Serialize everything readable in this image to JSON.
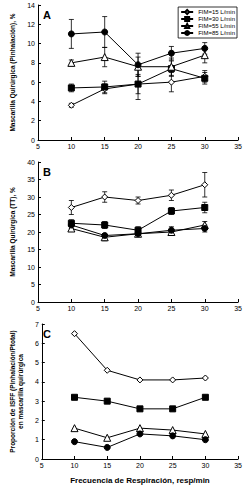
{
  "chart_data": [
    {
      "type": "line",
      "annotation": "A",
      "ylabel": "Mascarilla Quirúrgica (Pinhalación), %",
      "x": [
        10,
        15,
        20,
        25,
        30
      ],
      "xlim": [
        5,
        35
      ],
      "xticks": [
        5,
        10,
        15,
        20,
        25,
        30,
        35
      ],
      "ylim": [
        0,
        14
      ],
      "yticks": [
        0,
        2,
        4,
        6,
        8,
        10,
        12,
        14
      ],
      "grid": false,
      "legend": "upper right",
      "series": [
        {
          "name": "FIM=15 L/min",
          "color": "#000000",
          "marker": "diamond-open",
          "values": [
            3.6,
            5.3,
            5.8,
            6.0,
            6.6
          ],
          "errors": [
            0.2,
            0.5,
            1.0,
            1.0,
            0.6
          ]
        },
        {
          "name": "FIM=30 L/min",
          "color": "#000000",
          "marker": "square",
          "values": [
            5.4,
            5.5,
            5.8,
            7.4,
            6.4
          ],
          "errors": [
            0.4,
            0.6,
            1.6,
            0.8,
            0.6
          ]
        },
        {
          "name": "FIM=55 L/min",
          "color": "#000000",
          "marker": "triangle-open",
          "values": [
            8.0,
            8.6,
            7.6,
            7.6,
            8.8
          ],
          "errors": [
            0.3,
            1.0,
            1.0,
            0.9,
            0.8
          ]
        },
        {
          "name": "FIM=85 L/min",
          "color": "#000000",
          "marker": "circle",
          "values": [
            11.0,
            11.2,
            7.8,
            9.0,
            9.5
          ],
          "errors": [
            1.5,
            1.6,
            1.2,
            0.7,
            0.6
          ]
        }
      ]
    },
    {
      "type": "line",
      "annotation": "B",
      "ylabel": "Mascarilla Quirúrgica (TT), %",
      "x": [
        10,
        15,
        20,
        25,
        30
      ],
      "xlim": [
        5,
        35
      ],
      "xticks": [
        5,
        10,
        15,
        20,
        25,
        30,
        35
      ],
      "ylim": [
        0,
        40
      ],
      "yticks": [
        0,
        5,
        10,
        15,
        20,
        25,
        30,
        35,
        40
      ],
      "grid": false,
      "series": [
        {
          "name": "FIM=15 L/min",
          "color": "#000000",
          "marker": "diamond-open",
          "values": [
            27.0,
            30.0,
            29.0,
            30.5,
            33.5
          ],
          "errors": [
            2.0,
            1.5,
            1.0,
            1.5,
            3.5
          ]
        },
        {
          "name": "FIM=30 L/min",
          "color": "#000000",
          "marker": "square",
          "values": [
            22.5,
            22.0,
            20.5,
            26.0,
            27.0
          ],
          "errors": [
            1.0,
            1.0,
            1.0,
            1.0,
            1.5
          ]
        },
        {
          "name": "FIM=55 L/min",
          "color": "#000000",
          "marker": "triangle-open",
          "values": [
            21.0,
            18.5,
            19.5,
            20.0,
            22.0
          ],
          "errors": [
            0.5,
            1.0,
            0.5,
            0.5,
            1.0
          ]
        },
        {
          "name": "FIM=85 L/min",
          "color": "#000000",
          "marker": "circle",
          "values": [
            22.0,
            19.0,
            19.5,
            20.5,
            21.0
          ],
          "errors": [
            1.0,
            0.5,
            0.5,
            1.0,
            1.0
          ]
        }
      ]
    },
    {
      "type": "line",
      "annotation": "C",
      "ylabel": "Proporción de ISFF (Pinhalación/Ptotal)\nen mascarilla quirúrgica",
      "xlabel": "Frecuencia de Respiración, resp/min",
      "x": [
        10,
        15,
        20,
        25,
        30
      ],
      "xlim": [
        5,
        35
      ],
      "xticks": [
        5,
        10,
        15,
        20,
        25,
        30,
        35
      ],
      "ylim": [
        0,
        7
      ],
      "yticks": [
        0,
        1,
        2,
        3,
        4,
        5,
        6,
        7
      ],
      "grid": false,
      "series": [
        {
          "name": "FIM=15 L/min",
          "color": "#000000",
          "marker": "diamond-open",
          "values": [
            6.5,
            4.6,
            4.1,
            4.1,
            4.2
          ]
        },
        {
          "name": "FIM=30 L/min",
          "color": "#000000",
          "marker": "square",
          "values": [
            3.2,
            3.0,
            2.6,
            2.6,
            3.2
          ]
        },
        {
          "name": "FIM=55 L/min",
          "color": "#000000",
          "marker": "triangle-open",
          "values": [
            1.6,
            1.1,
            1.6,
            1.5,
            1.3
          ]
        },
        {
          "name": "FIM=85 L/min",
          "color": "#000000",
          "marker": "circle",
          "values": [
            0.9,
            0.6,
            1.3,
            1.2,
            1.0
          ]
        }
      ]
    }
  ]
}
